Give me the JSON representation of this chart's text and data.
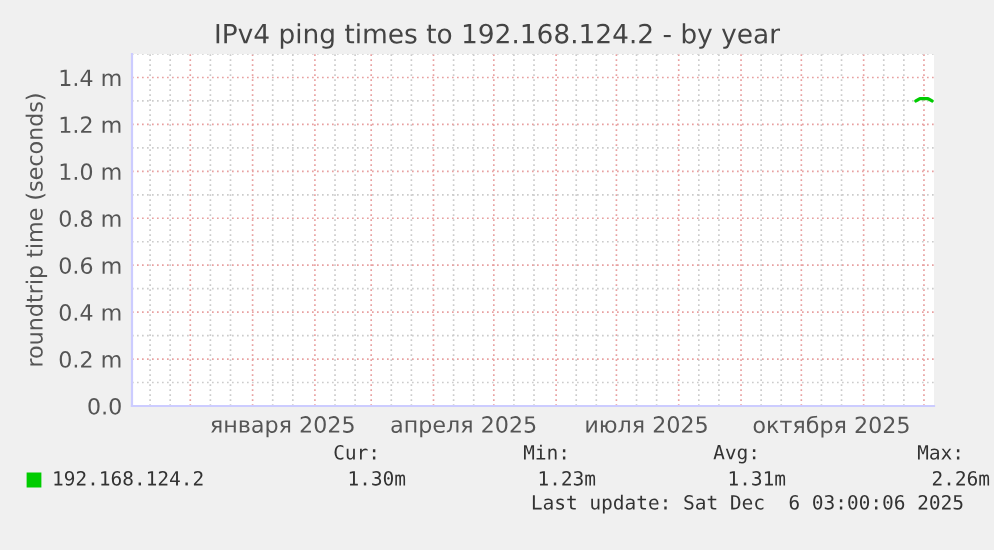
{
  "chart_data": {
    "type": "line",
    "title": "IPv4 ping times to 192.168.124.2 - by year",
    "ylabel": "roundtrip time (seconds)",
    "xlim": [
      "2024-11-02",
      "2025-12-06"
    ],
    "xticks": [
      {
        "value": "2025-01-16",
        "label": "января 2025"
      },
      {
        "value": "2025-04-16",
        "label": "апреля 2025"
      },
      {
        "value": "2025-07-16",
        "label": "июля 2025"
      },
      {
        "value": "2025-10-16",
        "label": "октября 2025"
      }
    ],
    "ylim": [
      0,
      1.5
    ],
    "yticks": [
      {
        "value": 0,
        "label": "0.0"
      },
      {
        "value": 0.2,
        "label": "0.2 m"
      },
      {
        "value": 0.4,
        "label": "0.4 m"
      },
      {
        "value": 0.6,
        "label": "0.6 m"
      },
      {
        "value": 0.8,
        "label": "0.8 m"
      },
      {
        "value": 1.0,
        "label": "1.0 m"
      },
      {
        "value": 1.2,
        "label": "1.2 m"
      },
      {
        "value": 1.4,
        "label": "1.4 m"
      }
    ],
    "series": [
      {
        "name": "192.168.124.2",
        "color": "#00cc00",
        "x": [
          "2025-11-27",
          "2025-11-29",
          "2025-12-01",
          "2025-12-03",
          "2025-12-05"
        ],
        "values": [
          1.3,
          1.31,
          1.31,
          1.31,
          1.3
        ]
      }
    ],
    "grid": true,
    "legend": "bottom",
    "annotations": [
      "Cur:",
      "Min:",
      "Avg:",
      "Max:",
      "1.30m",
      "1.23m",
      "1.31m",
      "2.26m",
      "Last update: Sat Dec  6 03:00:06 2025"
    ]
  }
}
